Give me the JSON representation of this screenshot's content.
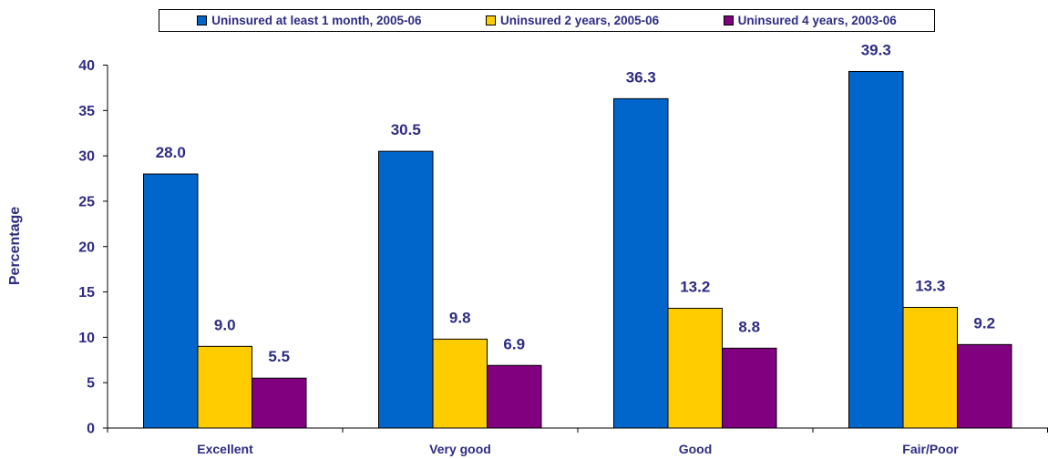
{
  "colors": {
    "text": "#2E2C83",
    "series": [
      "#0066CC",
      "#FFCC00",
      "#800080"
    ]
  },
  "chart_data": {
    "type": "bar",
    "title": "",
    "xlabel": "",
    "ylabel": "Percentage",
    "ylim": [
      0,
      40
    ],
    "yticks": [
      0,
      5,
      10,
      15,
      20,
      25,
      30,
      35,
      40
    ],
    "grid": false,
    "legend": "top",
    "categories": [
      "Excellent",
      "Very good",
      "Good",
      "Fair/Poor"
    ],
    "series": [
      {
        "name": "Uninsured at least 1 month, 2005-06",
        "values": [
          28.0,
          30.5,
          36.3,
          39.3
        ],
        "labels": [
          "28.0",
          "30.5",
          "36.3",
          "39.3"
        ]
      },
      {
        "name": "Uninsured 2 years, 2005-06",
        "values": [
          9.0,
          9.8,
          13.2,
          13.3
        ],
        "labels": [
          "9.0",
          "9.8",
          "13.2",
          "13.3"
        ]
      },
      {
        "name": "Uninsured 4 years, 2003-06",
        "values": [
          5.5,
          6.9,
          8.8,
          9.2
        ],
        "labels": [
          "5.5",
          "6.9",
          "8.8",
          "9.2"
        ]
      }
    ]
  }
}
